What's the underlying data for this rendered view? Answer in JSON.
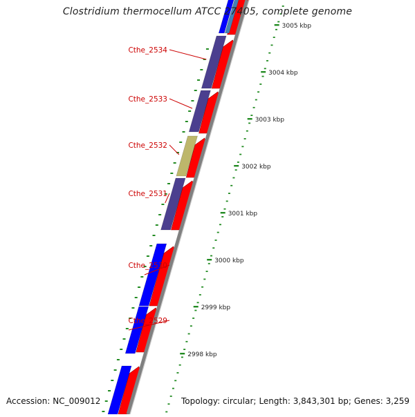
{
  "title": "Clostridium thermocellum ATCC 27405, complete genome",
  "footer": {
    "accession_label": "Accession: NC_009012",
    "topology": "Topology: circular;",
    "length": "Length: 3,843,301 bp;",
    "genes": "Genes: 3,259"
  },
  "colors": {
    "forward_cds": "#ff0000",
    "blue_feature": "#0000ff",
    "purple_feature": "#4b3f8f",
    "khaki_feature": "#bdb76b",
    "backbone": "#808080",
    "tick": "#228b22",
    "gene_label": "#cc0000"
  },
  "ruler": {
    "ticks": [
      {
        "label": "3005 kbp"
      },
      {
        "label": "3004 kbp"
      },
      {
        "label": "3003 kbp"
      },
      {
        "label": "3002 kbp"
      },
      {
        "label": "3001 kbp"
      },
      {
        "label": "3000 kbp"
      },
      {
        "label": "2999 kbp"
      },
      {
        "label": "2998 kbp"
      }
    ]
  },
  "genes": [
    {
      "label": "Cthe_2534"
    },
    {
      "label": "Cthe_2533"
    },
    {
      "label": "Cthe_2532"
    },
    {
      "label": "Cthe_2531"
    },
    {
      "label": "Cthe_2530"
    },
    {
      "label": "Cthe_2529"
    }
  ]
}
